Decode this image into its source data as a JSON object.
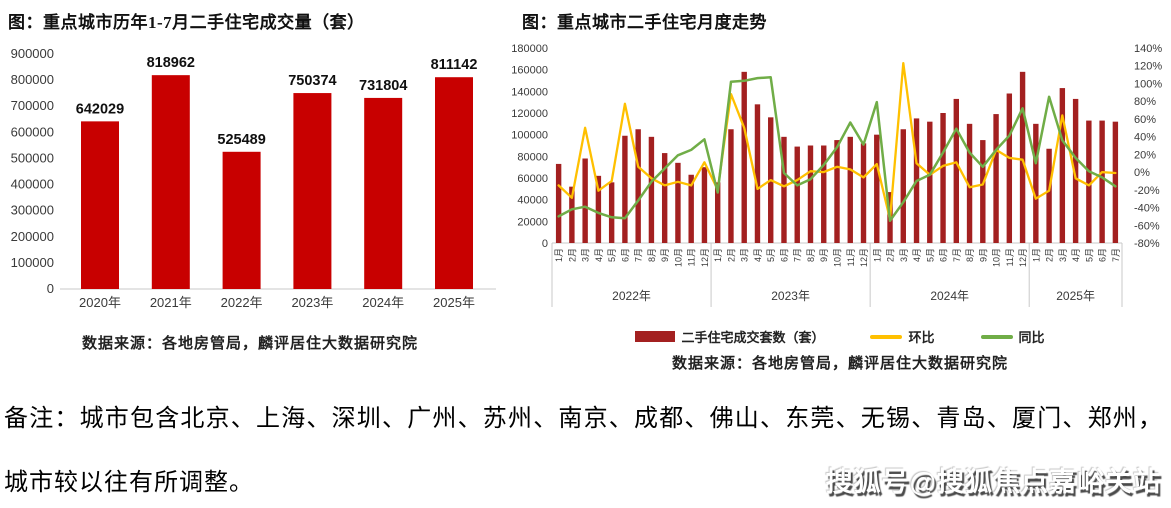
{
  "page": {
    "note_line1": "备注：城市包含北京、上海、深圳、广州、苏州、南京、成都、佛山、东莞、无锡、青岛、厦门、郑州，",
    "note_line2": "城市较以往有所调整。",
    "watermark": "搜狐号@搜狐焦点嘉峪关站"
  },
  "colors": {
    "bar_left": "#C80000",
    "bar_right": "#A32020",
    "line_huanbi": "#FFC000",
    "line_tongbi": "#70AD47",
    "axis_text": "#3a3a3a",
    "grid_line": "#c9c9c9"
  },
  "chart_data": [
    {
      "id": "annual-jan-jul-volume",
      "type": "bar",
      "title": "图：重点城市历年1-7月二手住宅成交量（套）",
      "source": "数据来源：各地房管局，麟评居住大数据研究院",
      "categories": [
        "2020年",
        "2021年",
        "2022年",
        "2023年",
        "2024年",
        "2025年"
      ],
      "values": [
        642029,
        818962,
        525489,
        750374,
        731804,
        811142
      ],
      "ylabel": "",
      "ylim": [
        0,
        900000
      ],
      "ytick_step": 100000,
      "grid": false,
      "data_labels": true
    },
    {
      "id": "monthly-trend",
      "type": "bar+line",
      "title": "图：重点城市二手住宅月度走势",
      "source": "数据来源：各地房管局，麟评居住大数据研究院",
      "legend_position": "bottom",
      "years": [
        {
          "label": "2022年",
          "months": 12
        },
        {
          "label": "2023年",
          "months": 12
        },
        {
          "label": "2024年",
          "months": 12
        },
        {
          "label": "2025年",
          "months": 7
        }
      ],
      "month_labels": [
        "1月",
        "2月",
        "3月",
        "4月",
        "5月",
        "6月",
        "7月",
        "8月",
        "9月",
        "10月",
        "11月",
        "12月",
        "1月",
        "2月",
        "3月",
        "4月",
        "5月",
        "6月",
        "7月",
        "8月",
        "9月",
        "10月",
        "11月",
        "12月",
        "1月",
        "2月",
        "3月",
        "4月",
        "5月",
        "6月",
        "7月",
        "8月",
        "9月",
        "10月",
        "11月",
        "12月",
        "1月",
        "2月",
        "3月",
        "4月",
        "5月",
        "6月",
        "7月"
      ],
      "left_axis": {
        "min": 0,
        "max": 180000,
        "step": 20000
      },
      "right_axis": {
        "min": -80,
        "max": 140,
        "step": 20,
        "suffix": "%"
      },
      "series": [
        {
          "name": "二手住宅成交套数（套）",
          "type": "bar",
          "axis": "left",
          "values": [
            73000,
            52000,
            78000,
            62000,
            56000,
            99000,
            105000,
            98000,
            83000,
            74000,
            63000,
            70000,
            56000,
            105000,
            158000,
            128000,
            116000,
            98000,
            89000,
            90000,
            90000,
            95000,
            98000,
            92000,
            100000,
            47000,
            105000,
            115000,
            112000,
            120000,
            133000,
            110000,
            95000,
            119000,
            138000,
            158000,
            110000,
            87000,
            143000,
            133000,
            113000,
            113000,
            112000
          ]
        },
        {
          "name": "环比",
          "type": "line",
          "axis": "right",
          "values": [
            -15,
            -29,
            50,
            -21,
            -10,
            77,
            6,
            -7,
            -15,
            -11,
            -15,
            11,
            -20,
            88,
            50,
            -19,
            -9,
            -16,
            -9,
            1,
            0,
            6,
            3,
            -6,
            9,
            -53,
            123,
            10,
            -3,
            7,
            11,
            -17,
            -14,
            25,
            16,
            14,
            -30,
            -21,
            64,
            -7,
            -15,
            0,
            -1
          ]
        },
        {
          "name": "同比",
          "type": "line",
          "axis": "right",
          "values": [
            -50,
            -42,
            -39,
            -46,
            -51,
            -52,
            -32,
            -11,
            4,
            19,
            25,
            37,
            -23,
            102,
            103,
            106,
            107,
            -1,
            -15,
            -8,
            8,
            28,
            56,
            31,
            79,
            -55,
            -34,
            -10,
            -3,
            22,
            49,
            22,
            6,
            25,
            41,
            72,
            10,
            85,
            36,
            16,
            1,
            -6,
            -16
          ]
        }
      ]
    }
  ]
}
